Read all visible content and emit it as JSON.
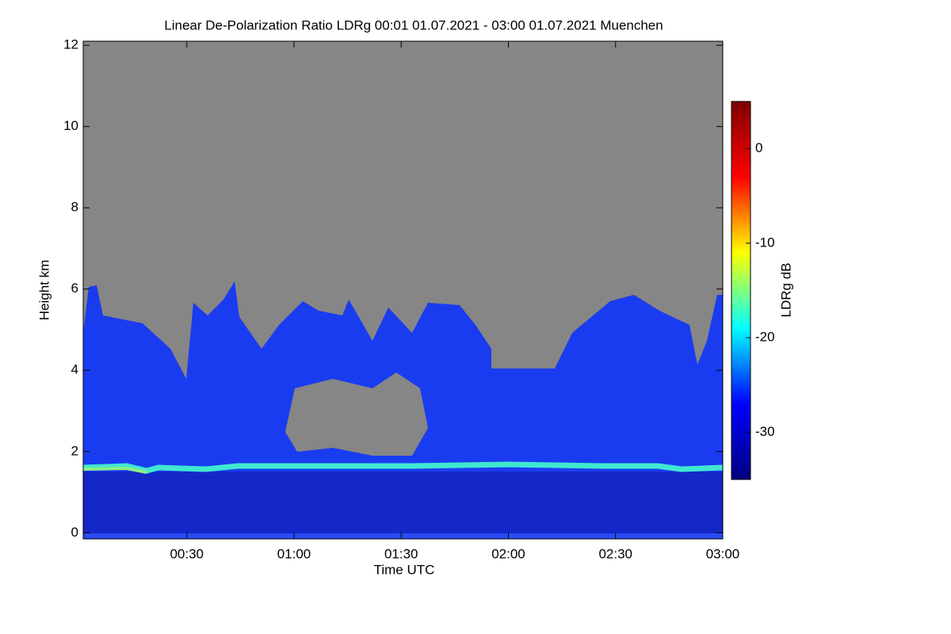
{
  "chart_data": {
    "type": "heatmap",
    "title": "Linear De-Polarization Ratio LDRg   00:01 01.07.2021 - 03:00 01.07.2021 Muenchen",
    "x_label": "Time UTC",
    "y_label": "Height km",
    "xlim": [
      1,
      180
    ],
    "xticks": [
      {
        "value": 30,
        "label": "00:30"
      },
      {
        "value": 60,
        "label": "01:00"
      },
      {
        "value": 90,
        "label": "01:30"
      },
      {
        "value": 120,
        "label": "02:00"
      },
      {
        "value": 150,
        "label": "02:30"
      },
      {
        "value": 180,
        "label": "03:00"
      }
    ],
    "ylim": [
      -0.15,
      12.1
    ],
    "yticks": [
      0,
      2,
      4,
      6,
      8,
      10,
      12
    ],
    "colorbar_label": "LDRg dB",
    "zlim": [
      -35,
      5
    ],
    "zticks": [
      0,
      -10,
      -20,
      -30
    ],
    "colormap": [
      "#00007f",
      "#0000ff",
      "#00ffff",
      "#ffff00",
      "#ff0000",
      "#7f0000"
    ]
  }
}
